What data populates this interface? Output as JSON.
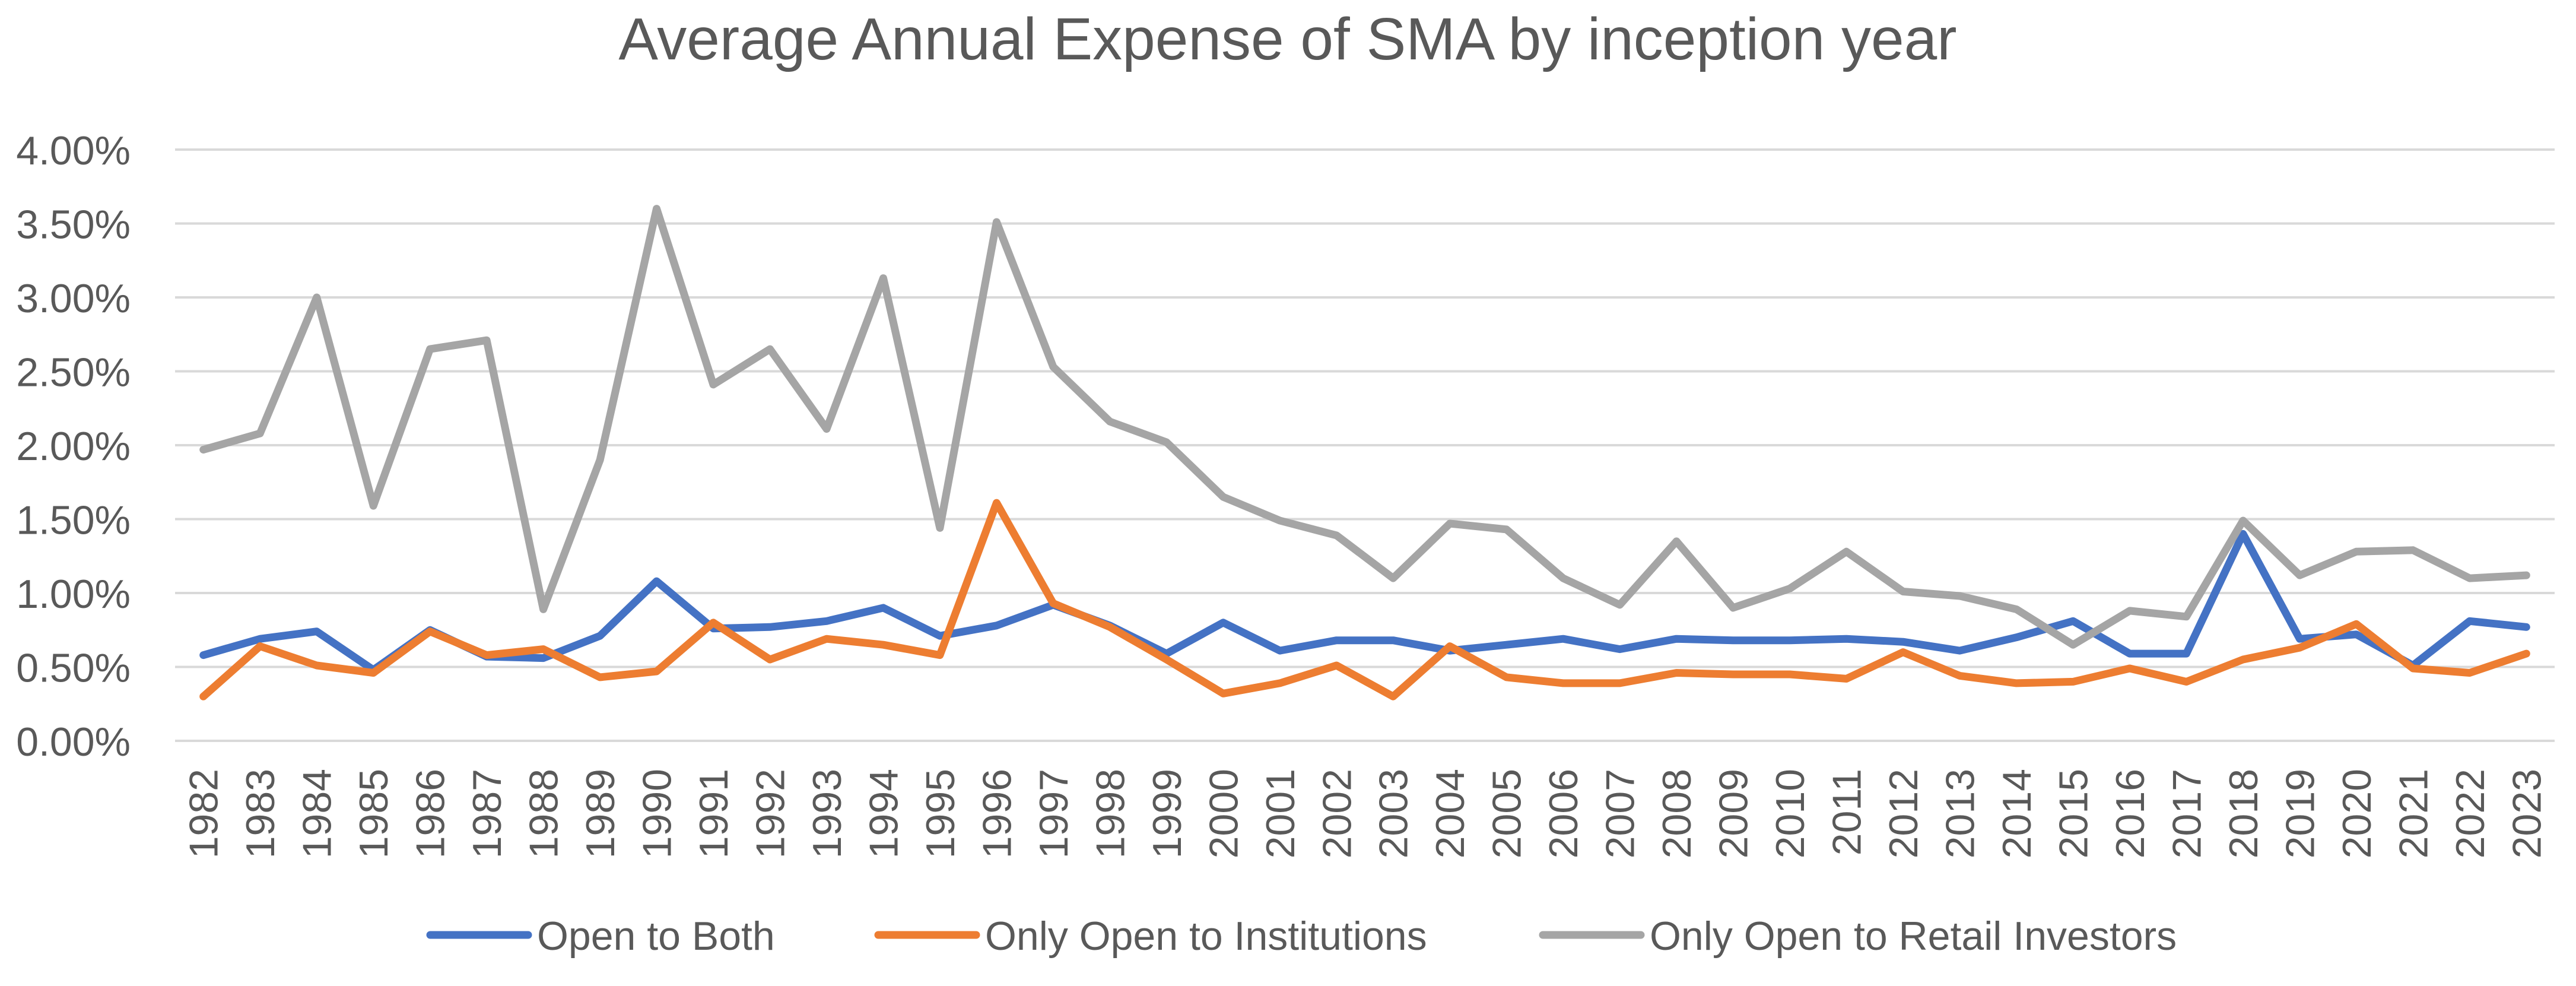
{
  "chart_data": {
    "type": "line",
    "title": "Average Annual Expense of SMA by inception year",
    "xlabel": "",
    "ylabel": "",
    "ylim": [
      0,
      0.04
    ],
    "ytick_values": [
      0,
      0.005,
      0.01,
      0.015,
      0.02,
      0.025,
      0.03,
      0.035,
      0.04
    ],
    "ytick_labels": [
      "0.00%",
      "0.50%",
      "1.00%",
      "1.50%",
      "2.00%",
      "2.50%",
      "3.00%",
      "3.50%",
      "4.00%"
    ],
    "grid": true,
    "legend_position": "bottom",
    "categories": [
      "1982",
      "1983",
      "1984",
      "1985",
      "1986",
      "1987",
      "1988",
      "1989",
      "1990",
      "1991",
      "1992",
      "1993",
      "1994",
      "1995",
      "1996",
      "1997",
      "1998",
      "1999",
      "2000",
      "2001",
      "2002",
      "2003",
      "2004",
      "2005",
      "2006",
      "2007",
      "2008",
      "2009",
      "2010",
      "2011",
      "2012",
      "2013",
      "2014",
      "2015",
      "2016",
      "2017",
      "2018",
      "2019",
      "2020",
      "2021",
      "2022",
      "2023"
    ],
    "series": [
      {
        "name": "Open to Both",
        "color": "#4472C4",
        "values": [
          0.0058,
          0.0069,
          0.0074,
          0.0048,
          0.0075,
          0.0057,
          0.0056,
          0.0071,
          0.0108,
          0.0076,
          0.0077,
          0.0081,
          0.009,
          0.0071,
          0.0078,
          0.0092,
          0.0078,
          0.0059,
          0.008,
          0.0061,
          0.0068,
          0.0068,
          0.0061,
          0.0065,
          0.0069,
          0.0062,
          0.0069,
          0.0068,
          0.0068,
          0.0069,
          0.0067,
          0.0061,
          0.007,
          0.0081,
          0.0059,
          0.0059,
          0.014,
          0.0069,
          0.0072,
          0.0051,
          0.0081,
          0.0077
        ]
      },
      {
        "name": "Only Open to Institutions",
        "color": "#ED7D31",
        "values": [
          0.003,
          0.0064,
          0.0051,
          0.0046,
          0.0074,
          0.0058,
          0.0062,
          0.0043,
          0.0047,
          0.008,
          0.0055,
          0.0069,
          0.0065,
          0.0058,
          0.0161,
          0.0093,
          0.0077,
          0.0055,
          0.0032,
          0.0039,
          0.0051,
          0.003,
          0.0064,
          0.0043,
          0.0039,
          0.0039,
          0.0046,
          0.0045,
          0.0045,
          0.0042,
          0.006,
          0.0044,
          0.0039,
          0.004,
          0.0049,
          0.004,
          0.0055,
          0.0063,
          0.0079,
          0.0049,
          0.0046,
          0.0059
        ]
      },
      {
        "name": "Only Open to Retail Investors",
        "color": "#A5A5A5",
        "values": [
          0.0197,
          0.0208,
          0.03,
          0.0159,
          0.0265,
          0.0271,
          0.0089,
          0.019,
          0.036,
          0.0241,
          0.0265,
          0.0211,
          0.0313,
          0.0144,
          0.0351,
          0.0253,
          0.0216,
          0.0202,
          0.0165,
          0.0149,
          0.0139,
          0.011,
          0.0147,
          0.0143,
          0.011,
          0.0092,
          0.0135,
          0.009,
          0.0103,
          0.0128,
          0.0101,
          0.0098,
          0.0089,
          0.0065,
          0.0088,
          0.0084,
          0.0149,
          0.0112,
          0.0128,
          0.0129,
          0.011,
          0.0112
        ]
      }
    ]
  },
  "colors": {
    "grid": "#D9D9D9",
    "axis_text": "#595959",
    "title_text": "#595959"
  }
}
